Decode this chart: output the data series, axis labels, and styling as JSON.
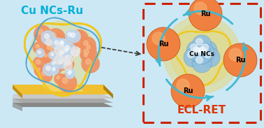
{
  "bg_color": "#cce8f4",
  "title_left": "Cu NCs-Ru",
  "title_left_color": "#00b0d8",
  "box_color": "#cc2200",
  "ecl_ret_label": "ECL-RET",
  "ecl_ret_color": "#dd3300",
  "cu_sphere_color": "#88bbdd",
  "cu_sphere_highlight": "#d0e8f8",
  "ru_sphere_color": "#f08040",
  "ru_sphere_edge": "#c05010",
  "yellow_glow": "#f0d040",
  "arrow_color": "#40b8d0",
  "dashed_arrow_color": "#333333",
  "gold_color": "#f0c030",
  "gold_dark": "#c09010",
  "gold_light": "#f8e080",
  "gray1": "#c8c8c8",
  "gray2": "#a8a8a8",
  "gray3": "#888888"
}
